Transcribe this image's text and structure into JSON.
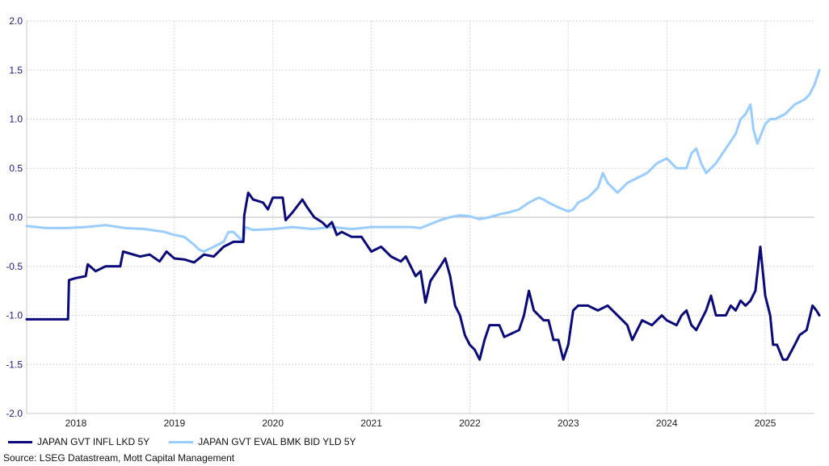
{
  "chart_data": {
    "type": "line",
    "title": "",
    "xlabel": "",
    "ylabel": "",
    "ylim": [
      -2.0,
      2.0
    ],
    "y_ticks": [
      "2.0",
      "1.5",
      "1.0",
      "0.5",
      "0.0",
      "-0.5",
      "-1.0",
      "-1.5",
      "-2.0"
    ],
    "x_ticks": [
      "2018",
      "2019",
      "2020",
      "2021",
      "2022",
      "2023",
      "2024",
      "2025"
    ],
    "xlim": [
      2017.5,
      2025.5
    ],
    "grid": true,
    "legend_position": "bottom-left",
    "series": [
      {
        "name": "JAPAN GVT INFL LKD 5Y",
        "color": "#0a0a7a",
        "points": [
          [
            2017.5,
            -1.04
          ],
          [
            2017.92,
            -1.04
          ],
          [
            2017.93,
            -0.64
          ],
          [
            2018.0,
            -0.62
          ],
          [
            2018.1,
            -0.6
          ],
          [
            2018.12,
            -0.48
          ],
          [
            2018.2,
            -0.55
          ],
          [
            2018.3,
            -0.5
          ],
          [
            2018.45,
            -0.5
          ],
          [
            2018.48,
            -0.35
          ],
          [
            2018.55,
            -0.37
          ],
          [
            2018.65,
            -0.4
          ],
          [
            2018.75,
            -0.38
          ],
          [
            2018.85,
            -0.45
          ],
          [
            2018.92,
            -0.35
          ],
          [
            2019.0,
            -0.42
          ],
          [
            2019.1,
            -0.43
          ],
          [
            2019.2,
            -0.46
          ],
          [
            2019.3,
            -0.38
          ],
          [
            2019.4,
            -0.4
          ],
          [
            2019.5,
            -0.3
          ],
          [
            2019.6,
            -0.25
          ],
          [
            2019.7,
            -0.25
          ],
          [
            2019.71,
            0.02
          ],
          [
            2019.75,
            0.25
          ],
          [
            2019.8,
            0.18
          ],
          [
            2019.9,
            0.15
          ],
          [
            2019.95,
            0.08
          ],
          [
            2020.0,
            0.2
          ],
          [
            2020.1,
            0.2
          ],
          [
            2020.13,
            -0.03
          ],
          [
            2020.2,
            0.05
          ],
          [
            2020.3,
            0.18
          ],
          [
            2020.35,
            0.1
          ],
          [
            2020.42,
            0.0
          ],
          [
            2020.5,
            -0.05
          ],
          [
            2020.55,
            -0.1
          ],
          [
            2020.6,
            -0.05
          ],
          [
            2020.65,
            -0.18
          ],
          [
            2020.7,
            -0.15
          ],
          [
            2020.8,
            -0.2
          ],
          [
            2020.9,
            -0.2
          ],
          [
            2021.0,
            -0.35
          ],
          [
            2021.1,
            -0.3
          ],
          [
            2021.2,
            -0.4
          ],
          [
            2021.3,
            -0.45
          ],
          [
            2021.35,
            -0.4
          ],
          [
            2021.45,
            -0.6
          ],
          [
            2021.5,
            -0.55
          ],
          [
            2021.55,
            -0.87
          ],
          [
            2021.6,
            -0.65
          ],
          [
            2021.7,
            -0.5
          ],
          [
            2021.75,
            -0.42
          ],
          [
            2021.8,
            -0.6
          ],
          [
            2021.85,
            -0.9
          ],
          [
            2021.9,
            -1.0
          ],
          [
            2021.95,
            -1.2
          ],
          [
            2022.0,
            -1.3
          ],
          [
            2022.05,
            -1.35
          ],
          [
            2022.1,
            -1.45
          ],
          [
            2022.15,
            -1.25
          ],
          [
            2022.2,
            -1.1
          ],
          [
            2022.3,
            -1.1
          ],
          [
            2022.35,
            -1.22
          ],
          [
            2022.5,
            -1.15
          ],
          [
            2022.55,
            -1.0
          ],
          [
            2022.6,
            -0.75
          ],
          [
            2022.65,
            -0.95
          ],
          [
            2022.75,
            -1.05
          ],
          [
            2022.8,
            -1.05
          ],
          [
            2022.85,
            -1.25
          ],
          [
            2022.9,
            -1.25
          ],
          [
            2022.95,
            -1.45
          ],
          [
            2023.0,
            -1.3
          ],
          [
            2023.05,
            -0.95
          ],
          [
            2023.1,
            -0.9
          ],
          [
            2023.2,
            -0.9
          ],
          [
            2023.3,
            -0.95
          ],
          [
            2023.4,
            -0.9
          ],
          [
            2023.5,
            -1.0
          ],
          [
            2023.6,
            -1.1
          ],
          [
            2023.65,
            -1.25
          ],
          [
            2023.7,
            -1.15
          ],
          [
            2023.75,
            -1.05
          ],
          [
            2023.85,
            -1.1
          ],
          [
            2023.95,
            -1.0
          ],
          [
            2024.0,
            -1.05
          ],
          [
            2024.1,
            -1.1
          ],
          [
            2024.15,
            -1.0
          ],
          [
            2024.2,
            -0.95
          ],
          [
            2024.25,
            -1.1
          ],
          [
            2024.3,
            -1.15
          ],
          [
            2024.4,
            -0.95
          ],
          [
            2024.45,
            -0.8
          ],
          [
            2024.5,
            -1.0
          ],
          [
            2024.6,
            -1.0
          ],
          [
            2024.65,
            -0.9
          ],
          [
            2024.7,
            -0.95
          ],
          [
            2024.75,
            -0.85
          ],
          [
            2024.8,
            -0.9
          ],
          [
            2024.85,
            -0.85
          ],
          [
            2024.9,
            -0.75
          ],
          [
            2024.95,
            -0.3
          ],
          [
            2025.0,
            -0.8
          ],
          [
            2025.05,
            -1.0
          ],
          [
            2025.08,
            -1.3
          ],
          [
            2025.12,
            -1.3
          ],
          [
            2025.18,
            -1.45
          ],
          [
            2025.22,
            -1.45
          ],
          [
            2025.3,
            -1.3
          ],
          [
            2025.35,
            -1.2
          ],
          [
            2025.42,
            -1.15
          ],
          [
            2025.48,
            -0.9
          ],
          [
            2025.52,
            -0.95
          ],
          [
            2025.55,
            -1.0
          ]
        ]
      },
      {
        "name": "JAPAN GVT EVAL BMK BID YLD 5Y",
        "color": "#99ccff",
        "points": [
          [
            2017.5,
            -0.09
          ],
          [
            2017.7,
            -0.11
          ],
          [
            2017.9,
            -0.11
          ],
          [
            2018.1,
            -0.1
          ],
          [
            2018.3,
            -0.08
          ],
          [
            2018.5,
            -0.11
          ],
          [
            2018.7,
            -0.12
          ],
          [
            2018.9,
            -0.15
          ],
          [
            2019.0,
            -0.18
          ],
          [
            2019.1,
            -0.2
          ],
          [
            2019.2,
            -0.28
          ],
          [
            2019.25,
            -0.33
          ],
          [
            2019.3,
            -0.35
          ],
          [
            2019.4,
            -0.3
          ],
          [
            2019.5,
            -0.25
          ],
          [
            2019.55,
            -0.15
          ],
          [
            2019.6,
            -0.15
          ],
          [
            2019.65,
            -0.2
          ],
          [
            2019.7,
            -0.25
          ],
          [
            2019.72,
            -0.1
          ],
          [
            2019.8,
            -0.13
          ],
          [
            2020.0,
            -0.12
          ],
          [
            2020.2,
            -0.1
          ],
          [
            2020.4,
            -0.12
          ],
          [
            2020.6,
            -0.1
          ],
          [
            2020.8,
            -0.12
          ],
          [
            2021.0,
            -0.1
          ],
          [
            2021.2,
            -0.1
          ],
          [
            2021.4,
            -0.1
          ],
          [
            2021.5,
            -0.11
          ],
          [
            2021.6,
            -0.07
          ],
          [
            2021.7,
            -0.03
          ],
          [
            2021.8,
            0.0
          ],
          [
            2021.9,
            0.02
          ],
          [
            2022.0,
            0.01
          ],
          [
            2022.1,
            -0.02
          ],
          [
            2022.2,
            0.0
          ],
          [
            2022.3,
            0.03
          ],
          [
            2022.4,
            0.05
          ],
          [
            2022.5,
            0.08
          ],
          [
            2022.6,
            0.15
          ],
          [
            2022.7,
            0.2
          ],
          [
            2022.75,
            0.18
          ],
          [
            2022.8,
            0.15
          ],
          [
            2022.9,
            0.1
          ],
          [
            2023.0,
            0.06
          ],
          [
            2023.05,
            0.08
          ],
          [
            2023.1,
            0.15
          ],
          [
            2023.2,
            0.2
          ],
          [
            2023.3,
            0.3
          ],
          [
            2023.35,
            0.45
          ],
          [
            2023.4,
            0.35
          ],
          [
            2023.5,
            0.25
          ],
          [
            2023.55,
            0.3
          ],
          [
            2023.6,
            0.35
          ],
          [
            2023.7,
            0.4
          ],
          [
            2023.8,
            0.45
          ],
          [
            2023.9,
            0.55
          ],
          [
            2024.0,
            0.6
          ],
          [
            2024.1,
            0.5
          ],
          [
            2024.2,
            0.5
          ],
          [
            2024.25,
            0.65
          ],
          [
            2024.3,
            0.7
          ],
          [
            2024.35,
            0.55
          ],
          [
            2024.4,
            0.45
          ],
          [
            2024.5,
            0.55
          ],
          [
            2024.6,
            0.7
          ],
          [
            2024.7,
            0.85
          ],
          [
            2024.75,
            1.0
          ],
          [
            2024.8,
            1.05
          ],
          [
            2024.85,
            1.15
          ],
          [
            2024.88,
            0.9
          ],
          [
            2024.92,
            0.75
          ],
          [
            2025.0,
            0.95
          ],
          [
            2025.05,
            1.0
          ],
          [
            2025.1,
            1.0
          ],
          [
            2025.2,
            1.05
          ],
          [
            2025.3,
            1.15
          ],
          [
            2025.4,
            1.2
          ],
          [
            2025.45,
            1.25
          ],
          [
            2025.5,
            1.35
          ],
          [
            2025.55,
            1.5
          ]
        ]
      }
    ]
  },
  "legend": {
    "items": [
      {
        "label": "JAPAN GVT INFL LKD 5Y",
        "color": "#0a0a7a"
      },
      {
        "label": "JAPAN GVT EVAL BMK BID YLD 5Y",
        "color": "#99ccff"
      }
    ]
  },
  "source_text": "Source: LSEG Datastream, Mott Capital Management"
}
